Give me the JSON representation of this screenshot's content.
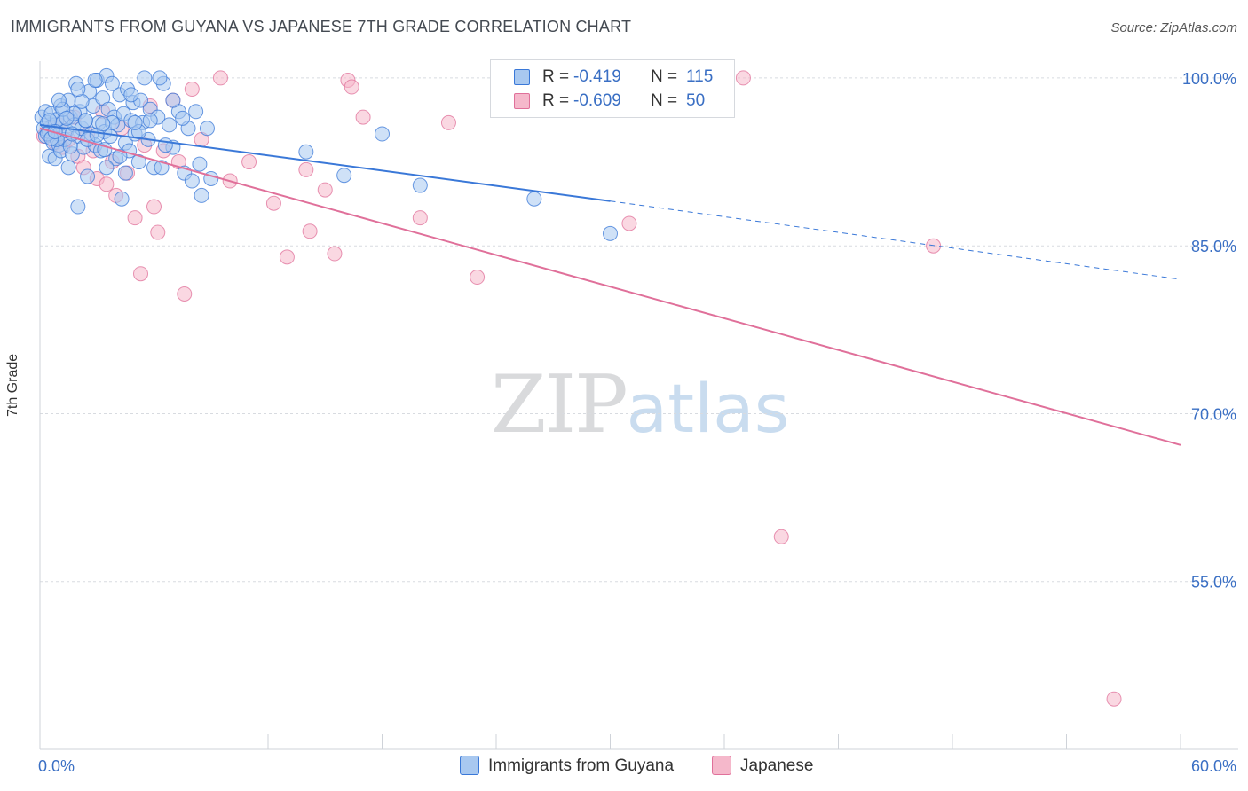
{
  "header": {
    "title": "IMMIGRANTS FROM GUYANA VS JAPANESE 7TH GRADE CORRELATION CHART",
    "source": "Source: ZipAtlas.com"
  },
  "watermark": {
    "zip": "ZIP",
    "atlas": "atlas"
  },
  "legend": {
    "rows": [
      {
        "r_label": "R =",
        "r_value": "-0.419",
        "n_label": "N =",
        "n_value": "115",
        "color": "#a8c8f0"
      },
      {
        "r_label": "R =",
        "r_value": "-0.609",
        "n_label": "N =",
        "n_value": "50",
        "color": "#f5b8cb"
      }
    ],
    "bottom": [
      {
        "label": "Immigrants from Guyana",
        "color": "#a8c8f0"
      },
      {
        "label": "Japanese",
        "color": "#f5b8cb"
      }
    ]
  },
  "chart_data": {
    "type": "scatter",
    "title": "IMMIGRANTS FROM GUYANA VS JAPANESE 7TH GRADE CORRELATION CHART",
    "xlabel": "",
    "ylabel": "7th Grade",
    "xlim": [
      0,
      60
    ],
    "ylim": [
      40,
      101.5
    ],
    "x_tick_labels": [
      "0.0%",
      "60.0%"
    ],
    "y_ticks": [
      55,
      70,
      85,
      100
    ],
    "y_tick_labels": [
      "55.0%",
      "70.0%",
      "85.0%",
      "100.0%"
    ],
    "grid": true,
    "colors": {
      "blue": "#3a78d8",
      "pink": "#e0709a",
      "blue_fill": "#a8c8f0",
      "pink_fill": "#f5b8cb",
      "axis_label": "#3a6fc4"
    },
    "series": [
      {
        "name": "Immigrants from Guyana",
        "r": -0.419,
        "n": 115,
        "trend": {
          "x0": 0,
          "y0": 95.8,
          "x1": 30,
          "y1": 89.0,
          "dashed_to_x": 60,
          "dashed_to_y": 82.0
        },
        "points": [
          [
            0.1,
            96.5
          ],
          [
            0.2,
            95.5
          ],
          [
            0.3,
            97.0
          ],
          [
            0.3,
            94.8
          ],
          [
            0.4,
            96.0
          ],
          [
            0.5,
            95.2
          ],
          [
            0.5,
            93.0
          ],
          [
            0.6,
            96.8
          ],
          [
            0.7,
            94.2
          ],
          [
            0.8,
            95.8
          ],
          [
            0.8,
            92.8
          ],
          [
            0.9,
            96.3
          ],
          [
            1.0,
            94.0
          ],
          [
            1.0,
            95.0
          ],
          [
            1.1,
            97.5
          ],
          [
            1.1,
            93.5
          ],
          [
            1.2,
            96.0
          ],
          [
            1.3,
            94.5
          ],
          [
            1.4,
            95.3
          ],
          [
            1.5,
            98.0
          ],
          [
            1.5,
            92.0
          ],
          [
            1.6,
            96.5
          ],
          [
            1.7,
            93.2
          ],
          [
            1.8,
            95.8
          ],
          [
            1.9,
            99.5
          ],
          [
            2.0,
            94.8
          ],
          [
            2.0,
            88.5
          ],
          [
            2.1,
            97.0
          ],
          [
            2.2,
            95.5
          ],
          [
            2.3,
            93.8
          ],
          [
            2.4,
            96.2
          ],
          [
            2.5,
            91.2
          ],
          [
            2.6,
            98.8
          ],
          [
            2.7,
            95.0
          ],
          [
            2.8,
            97.5
          ],
          [
            2.9,
            94.0
          ],
          [
            3.0,
            99.8
          ],
          [
            3.1,
            96.0
          ],
          [
            3.2,
            93.5
          ],
          [
            3.3,
            98.2
          ],
          [
            3.4,
            95.2
          ],
          [
            3.5,
            100.2
          ],
          [
            3.6,
            97.2
          ],
          [
            3.7,
            94.8
          ],
          [
            3.8,
            99.5
          ],
          [
            3.9,
            96.5
          ],
          [
            4.0,
            92.8
          ],
          [
            4.1,
            95.8
          ],
          [
            4.2,
            98.5
          ],
          [
            4.3,
            89.2
          ],
          [
            4.4,
            96.8
          ],
          [
            4.5,
            94.2
          ],
          [
            4.6,
            99.0
          ],
          [
            4.7,
            93.5
          ],
          [
            4.8,
            96.2
          ],
          [
            4.9,
            97.8
          ],
          [
            5.0,
            95.0
          ],
          [
            5.2,
            92.5
          ],
          [
            5.3,
            98.0
          ],
          [
            5.4,
            96.0
          ],
          [
            5.5,
            100.0
          ],
          [
            5.7,
            94.5
          ],
          [
            5.8,
            97.2
          ],
          [
            6.0,
            92.0
          ],
          [
            6.2,
            96.5
          ],
          [
            6.5,
            99.5
          ],
          [
            6.8,
            95.8
          ],
          [
            7.0,
            93.8
          ],
          [
            7.3,
            97.0
          ],
          [
            7.6,
            91.5
          ],
          [
            7.8,
            95.5
          ],
          [
            8.0,
            90.8
          ],
          [
            8.2,
            97.0
          ],
          [
            8.5,
            89.5
          ],
          [
            8.8,
            95.5
          ],
          [
            9.0,
            91.0
          ],
          [
            4.2,
            93.0
          ],
          [
            2.5,
            94.5
          ],
          [
            1.8,
            96.8
          ],
          [
            1.2,
            97.2
          ],
          [
            0.9,
            94.5
          ],
          [
            3.5,
            92.0
          ],
          [
            5.8,
            96.2
          ],
          [
            6.4,
            92.0
          ],
          [
            7.0,
            98.0
          ],
          [
            2.9,
            99.8
          ],
          [
            4.8,
            98.5
          ],
          [
            1.6,
            93.9
          ],
          [
            3.8,
            96.0
          ],
          [
            5.2,
            95.2
          ],
          [
            0.4,
            95.0
          ],
          [
            0.6,
            94.6
          ],
          [
            1.4,
            96.4
          ],
          [
            2.2,
            97.9
          ],
          [
            3.0,
            94.9
          ],
          [
            3.3,
            95.9
          ],
          [
            4.5,
            91.5
          ],
          [
            6.6,
            94.0
          ],
          [
            7.5,
            96.4
          ],
          [
            8.4,
            92.3
          ],
          [
            14.0,
            93.4
          ],
          [
            16.0,
            91.3
          ],
          [
            18.0,
            95.0
          ],
          [
            20.0,
            90.4
          ],
          [
            26.0,
            89.2
          ],
          [
            30.0,
            86.1
          ],
          [
            2.0,
            99.0
          ],
          [
            0.5,
            96.2
          ],
          [
            1.0,
            98.0
          ],
          [
            1.7,
            95.0
          ],
          [
            0.8,
            95.2
          ],
          [
            2.4,
            96.2
          ],
          [
            3.4,
            93.6
          ],
          [
            5.0,
            96.0
          ],
          [
            6.3,
            100.0
          ]
        ]
      },
      {
        "name": "Japanese",
        "r": -0.609,
        "n": 50,
        "trend": {
          "x0": 0,
          "y0": 95.5,
          "x1": 60,
          "y1": 67.2
        },
        "points": [
          [
            0.2,
            94.8
          ],
          [
            0.5,
            95.5
          ],
          [
            0.8,
            94.2
          ],
          [
            1.0,
            95.8
          ],
          [
            1.2,
            93.8
          ],
          [
            1.5,
            94.5
          ],
          [
            1.8,
            96.5
          ],
          [
            2.0,
            93.0
          ],
          [
            2.3,
            92.0
          ],
          [
            2.5,
            95.0
          ],
          [
            2.8,
            93.5
          ],
          [
            3.0,
            91.0
          ],
          [
            3.3,
            97.0
          ],
          [
            3.5,
            90.5
          ],
          [
            3.8,
            92.5
          ],
          [
            4.0,
            89.5
          ],
          [
            4.3,
            95.5
          ],
          [
            4.6,
            91.5
          ],
          [
            5.0,
            87.5
          ],
          [
            5.3,
            82.5
          ],
          [
            5.5,
            94.0
          ],
          [
            5.8,
            97.5
          ],
          [
            6.0,
            88.5
          ],
          [
            6.2,
            86.2
          ],
          [
            6.5,
            93.5
          ],
          [
            7.0,
            98.0
          ],
          [
            7.3,
            92.5
          ],
          [
            7.6,
            80.7
          ],
          [
            8.0,
            99.0
          ],
          [
            8.5,
            94.5
          ],
          [
            9.5,
            100.0
          ],
          [
            10.0,
            90.8
          ],
          [
            11.0,
            92.5
          ],
          [
            12.3,
            88.8
          ],
          [
            13.0,
            84.0
          ],
          [
            14.0,
            91.8
          ],
          [
            14.2,
            86.3
          ],
          [
            15.0,
            90.0
          ],
          [
            15.5,
            84.3
          ],
          [
            16.2,
            99.8
          ],
          [
            16.4,
            99.2
          ],
          [
            17.0,
            96.5
          ],
          [
            20.0,
            87.5
          ],
          [
            21.5,
            96.0
          ],
          [
            23.0,
            82.2
          ],
          [
            31.0,
            87.0
          ],
          [
            37.0,
            100.0
          ],
          [
            47.0,
            85.0
          ],
          [
            39.0,
            59.0
          ],
          [
            56.5,
            44.5
          ]
        ]
      }
    ]
  }
}
